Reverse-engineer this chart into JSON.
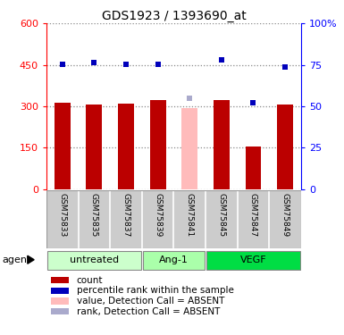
{
  "title": "GDS1923 / 1393690_at",
  "samples": [
    "GSM75833",
    "GSM75835",
    "GSM75837",
    "GSM75839",
    "GSM75841",
    "GSM75845",
    "GSM75847",
    "GSM75849"
  ],
  "bar_values": [
    312,
    306,
    311,
    322,
    295,
    322,
    155,
    306
  ],
  "bar_absent": [
    false,
    false,
    false,
    false,
    true,
    false,
    false,
    false
  ],
  "rank_values": [
    75.5,
    76.5,
    75.2,
    75.3,
    55,
    78,
    52,
    74
  ],
  "rank_absent": [
    false,
    false,
    false,
    false,
    true,
    false,
    false,
    false
  ],
  "bar_color": "#bb0000",
  "bar_absent_color": "#ffbbbb",
  "rank_color": "#0000bb",
  "rank_absent_color": "#aaaacc",
  "left_ylim": [
    0,
    600
  ],
  "left_yticks": [
    0,
    150,
    300,
    450,
    600
  ],
  "right_ylim": [
    0,
    100
  ],
  "right_yticks": [
    0,
    25,
    50,
    75,
    100
  ],
  "right_yticklabels": [
    "0",
    "25",
    "50",
    "75",
    "100%"
  ],
  "groups": [
    {
      "label": "untreated",
      "start": 0,
      "end": 2,
      "color": "#ccffcc"
    },
    {
      "label": "Ang-1",
      "start": 3,
      "end": 4,
      "color": "#aaffaa"
    },
    {
      "label": "VEGF",
      "start": 5,
      "end": 7,
      "color": "#00dd44"
    }
  ],
  "agent_label": "agent",
  "legend_items": [
    {
      "label": "count",
      "color": "#bb0000"
    },
    {
      "label": "percentile rank within the sample",
      "color": "#0000bb"
    },
    {
      "label": "value, Detection Call = ABSENT",
      "color": "#ffbbbb"
    },
    {
      "label": "rank, Detection Call = ABSENT",
      "color": "#aaaacc"
    }
  ],
  "grid_color": "#888888",
  "sample_area_color": "#cccccc"
}
